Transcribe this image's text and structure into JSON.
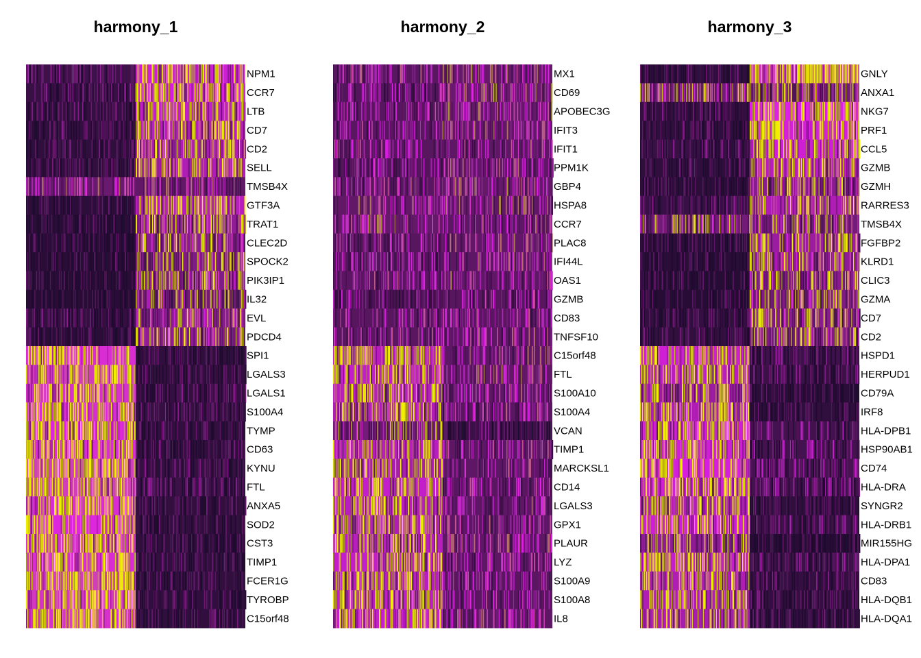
{
  "chart_data": [
    {
      "type": "heatmap",
      "title": "harmony_1",
      "genes": [
        "NPM1",
        "CCR7",
        "LTB",
        "CD7",
        "CD2",
        "SELL",
        "TMSB4X",
        "GTF3A",
        "TRAT1",
        "CLEC2D",
        "SPOCK2",
        "PIK3IP1",
        "IL32",
        "EVL",
        "PDCD4",
        "SPI1",
        "LGALS3",
        "LGALS1",
        "S100A4",
        "TYMP",
        "CD63",
        "KYNU",
        "FTL",
        "ANXA5",
        "SOD2",
        "CST3",
        "TIMP1",
        "FCER1G",
        "TYROBP",
        "C15orf48"
      ],
      "cell_groups": 2,
      "group_fraction": [
        0.5,
        0.5
      ],
      "mean_expression": [
        [
          0.22,
          0.78
        ],
        [
          0.18,
          0.8
        ],
        [
          0.15,
          0.75
        ],
        [
          0.14,
          0.72
        ],
        [
          0.12,
          0.7
        ],
        [
          0.13,
          0.7
        ],
        [
          0.5,
          0.45
        ],
        [
          0.1,
          0.72
        ],
        [
          0.08,
          0.62
        ],
        [
          0.08,
          0.6
        ],
        [
          0.07,
          0.58
        ],
        [
          0.07,
          0.58
        ],
        [
          0.07,
          0.55
        ],
        [
          0.15,
          0.6
        ],
        [
          0.08,
          0.62
        ],
        [
          0.85,
          0.12
        ],
        [
          0.88,
          0.14
        ],
        [
          0.86,
          0.15
        ],
        [
          0.85,
          0.16
        ],
        [
          0.84,
          0.14
        ],
        [
          0.85,
          0.14
        ],
        [
          0.88,
          0.16
        ],
        [
          0.88,
          0.2
        ],
        [
          0.85,
          0.14
        ],
        [
          0.84,
          0.13
        ],
        [
          0.86,
          0.12
        ],
        [
          0.85,
          0.14
        ],
        [
          0.88,
          0.13
        ],
        [
          0.87,
          0.12
        ],
        [
          0.86,
          0.12
        ]
      ]
    },
    {
      "type": "heatmap",
      "title": "harmony_2",
      "genes": [
        "MX1",
        "CD69",
        "APOBEC3G",
        "IFIT3",
        "IFIT1",
        "PPM1K",
        "GBP4",
        "HSPA8",
        "CCR7",
        "PLAC8",
        "IFI44L",
        "OAS1",
        "GZMB",
        "CD83",
        "TNFSF10",
        "C15orf48",
        "FTL",
        "S100A10",
        "S100A4",
        "VCAN",
        "TIMP1",
        "MARCKSL1",
        "CD14",
        "LGALS3",
        "GPX1",
        "PLAUR",
        "LYZ",
        "S100A9",
        "S100A8",
        "IL8"
      ],
      "cell_groups": 2,
      "group_fraction": [
        0.5,
        0.5
      ],
      "mean_expression": [
        [
          0.4,
          0.48
        ],
        [
          0.35,
          0.5
        ],
        [
          0.38,
          0.48
        ],
        [
          0.4,
          0.45
        ],
        [
          0.38,
          0.42
        ],
        [
          0.36,
          0.44
        ],
        [
          0.4,
          0.48
        ],
        [
          0.45,
          0.45
        ],
        [
          0.48,
          0.42
        ],
        [
          0.38,
          0.45
        ],
        [
          0.36,
          0.42
        ],
        [
          0.4,
          0.44
        ],
        [
          0.3,
          0.38
        ],
        [
          0.38,
          0.4
        ],
        [
          0.4,
          0.42
        ],
        [
          0.72,
          0.42
        ],
        [
          0.75,
          0.45
        ],
        [
          0.72,
          0.42
        ],
        [
          0.7,
          0.4
        ],
        [
          0.55,
          0.2
        ],
        [
          0.72,
          0.42
        ],
        [
          0.68,
          0.42
        ],
        [
          0.75,
          0.4
        ],
        [
          0.72,
          0.42
        ],
        [
          0.7,
          0.42
        ],
        [
          0.72,
          0.42
        ],
        [
          0.75,
          0.42
        ],
        [
          0.72,
          0.4
        ],
        [
          0.74,
          0.4
        ],
        [
          0.76,
          0.42
        ]
      ]
    },
    {
      "type": "heatmap",
      "title": "harmony_3",
      "genes": [
        "GNLY",
        "ANXA1",
        "NKG7",
        "PRF1",
        "CCL5",
        "GZMB",
        "GZMH",
        "RARRES3",
        "TMSB4X",
        "FGFBP2",
        "KLRD1",
        "CLIC3",
        "GZMA",
        "CD7",
        "CD2",
        "HSPD1",
        "HERPUD1",
        "CD79A",
        "IRF8",
        "HLA-DPB1",
        "HSP90AB1",
        "CD74",
        "HLA-DRA",
        "SYNGR2",
        "HLA-DRB1",
        "MIR155HG",
        "HLA-DPA1",
        "CD83",
        "HLA-DQB1",
        "HLA-DQA1"
      ],
      "cell_groups": 2,
      "group_fraction": [
        0.5,
        0.5
      ],
      "mean_expression": [
        [
          0.12,
          0.88
        ],
        [
          0.55,
          0.55
        ],
        [
          0.15,
          0.82
        ],
        [
          0.12,
          0.8
        ],
        [
          0.18,
          0.78
        ],
        [
          0.12,
          0.72
        ],
        [
          0.1,
          0.6
        ],
        [
          0.18,
          0.7
        ],
        [
          0.55,
          0.55
        ],
        [
          0.08,
          0.65
        ],
        [
          0.08,
          0.62
        ],
        [
          0.06,
          0.6
        ],
        [
          0.06,
          0.58
        ],
        [
          0.15,
          0.6
        ],
        [
          0.14,
          0.58
        ],
        [
          0.78,
          0.22
        ],
        [
          0.72,
          0.2
        ],
        [
          0.65,
          0.08
        ],
        [
          0.7,
          0.12
        ],
        [
          0.78,
          0.25
        ],
        [
          0.78,
          0.25
        ],
        [
          0.8,
          0.28
        ],
        [
          0.78,
          0.25
        ],
        [
          0.7,
          0.12
        ],
        [
          0.78,
          0.22
        ],
        [
          0.62,
          0.06
        ],
        [
          0.75,
          0.2
        ],
        [
          0.7,
          0.15
        ],
        [
          0.7,
          0.15
        ],
        [
          0.68,
          0.12
        ]
      ]
    }
  ],
  "colors": {
    "low": "#1e0b2e",
    "mid": "#6e1a72",
    "high_magenta": "#e020e8",
    "high": "#f0f000"
  }
}
